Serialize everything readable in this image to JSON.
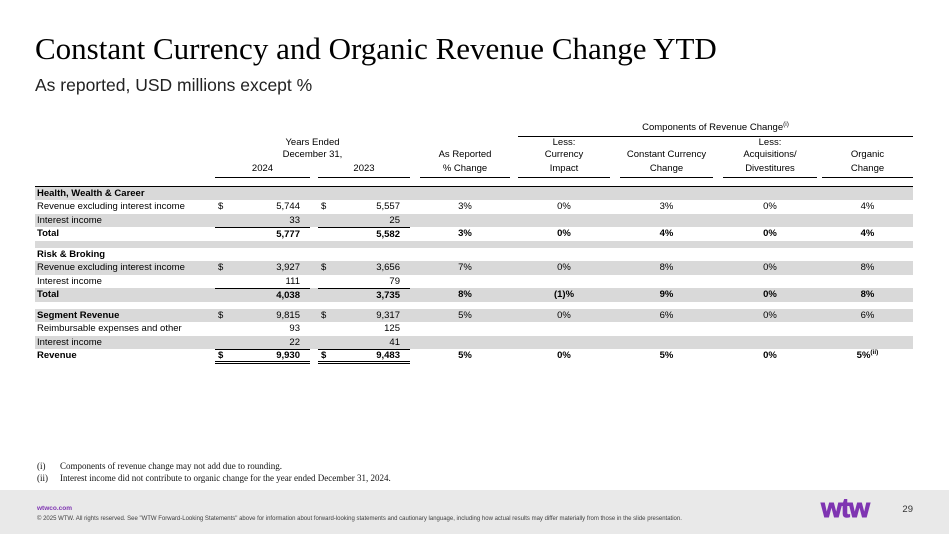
{
  "slide": {
    "title": "Constant Currency and Organic Revenue Change YTD",
    "subtitle": "As reported, USD millions except %"
  },
  "table": {
    "header": {
      "components_title": "Components of Revenue Change",
      "components_sup": "(i)",
      "years_ended": "Years Ended",
      "december": "December 31,",
      "y2024": "2024",
      "y2023": "2023",
      "as_reported_l1": "As Reported",
      "as_reported_l2": "% Change",
      "currency_l1": "Less:",
      "currency_l2": "Currency",
      "currency_l3": "Impact",
      "constant_l1": "Constant Currency",
      "constant_l2": "Change",
      "acq_l1": "Less:",
      "acq_l2": "Acquisitions/",
      "acq_l3": "Divestitures",
      "organic_l1": "Organic",
      "organic_l2": "Change"
    },
    "rows": [
      {
        "label": "Health, Wealth & Career",
        "bg": "gray",
        "bold_label": true,
        "top_border": true
      },
      {
        "label": "Revenue excluding interest income",
        "bg": "white",
        "d1": "$",
        "v1": "5,744",
        "d2": "$",
        "v2": "5,557",
        "p1": "3%",
        "p2": "0%",
        "p3": "3%",
        "p4": "0%",
        "p5": "4%"
      },
      {
        "label": "Interest income",
        "bg": "gray",
        "v1": "33",
        "v2": "25",
        "sumline": true
      },
      {
        "label": "Total",
        "bg": "white",
        "bold_label": true,
        "bold_vals": true,
        "v1": "5,777",
        "v2": "5,582",
        "p1": "3%",
        "p2": "0%",
        "p3": "4%",
        "p4": "0%",
        "p5": "4%"
      },
      {
        "spacer": true,
        "bg": "gray"
      },
      {
        "label": "Risk & Broking",
        "bg": "white",
        "bold_label": true
      },
      {
        "label": "Revenue excluding interest income",
        "bg": "gray",
        "d1": "$",
        "v1": "3,927",
        "d2": "$",
        "v2": "3,656",
        "p1": "7%",
        "p2": "0%",
        "p3": "8%",
        "p4": "0%",
        "p5": "8%"
      },
      {
        "label": "Interest income",
        "bg": "white",
        "v1": "111",
        "v2": "79",
        "sumline": true
      },
      {
        "label": "Total",
        "bg": "gray",
        "bold_label": true,
        "bold_vals": true,
        "v1": "4,038",
        "v2": "3,735",
        "p1": "8%",
        "p2": "(1)%",
        "p3": "9%",
        "p4": "0%",
        "p5": "8%"
      },
      {
        "spacer": true,
        "bg": "white"
      },
      {
        "label": "Segment Revenue",
        "bg": "gray",
        "bold_label": true,
        "d1": "$",
        "v1": "9,815",
        "d2": "$",
        "v2": "9,317",
        "p1": "5%",
        "p2": "0%",
        "p3": "6%",
        "p4": "0%",
        "p5": "6%"
      },
      {
        "label": "Reimbursable expenses and other",
        "bg": "white",
        "v1": "93",
        "v2": "125"
      },
      {
        "label": "Interest income",
        "bg": "gray",
        "v1": "22",
        "v2": "41",
        "sumline": true
      },
      {
        "label": "Revenue",
        "bg": "white",
        "bold_label": true,
        "bold_vals": true,
        "d1": "$",
        "v1": "9,930",
        "d2": "$",
        "v2": "9,483",
        "p1": "5%",
        "p2": "0%",
        "p3": "5%",
        "p4": "0%",
        "p5": "5%",
        "sup5": "(ii)",
        "dbl": true
      }
    ]
  },
  "footnotes": [
    {
      "marker": "(i)",
      "text": "Components of revenue change may not add due to rounding."
    },
    {
      "marker": "(ii)",
      "text": "Interest income did not contribute to organic change for the year ended December 31, 2024."
    }
  ],
  "footer": {
    "link": "wtwco.com",
    "copyright": "© 2025 WTW. All rights reserved. See \"WTW Forward-Looking Statements\" above for information about forward-looking statements and cautionary language, including how actual results may differ materially from those in the slide presentation.",
    "logo": "wtw",
    "page": "29"
  },
  "colors": {
    "row_band": "#d9d9d9",
    "footer_bg": "#e9e9e9",
    "brand_purple": "#7f35b2",
    "line": "#000000"
  }
}
